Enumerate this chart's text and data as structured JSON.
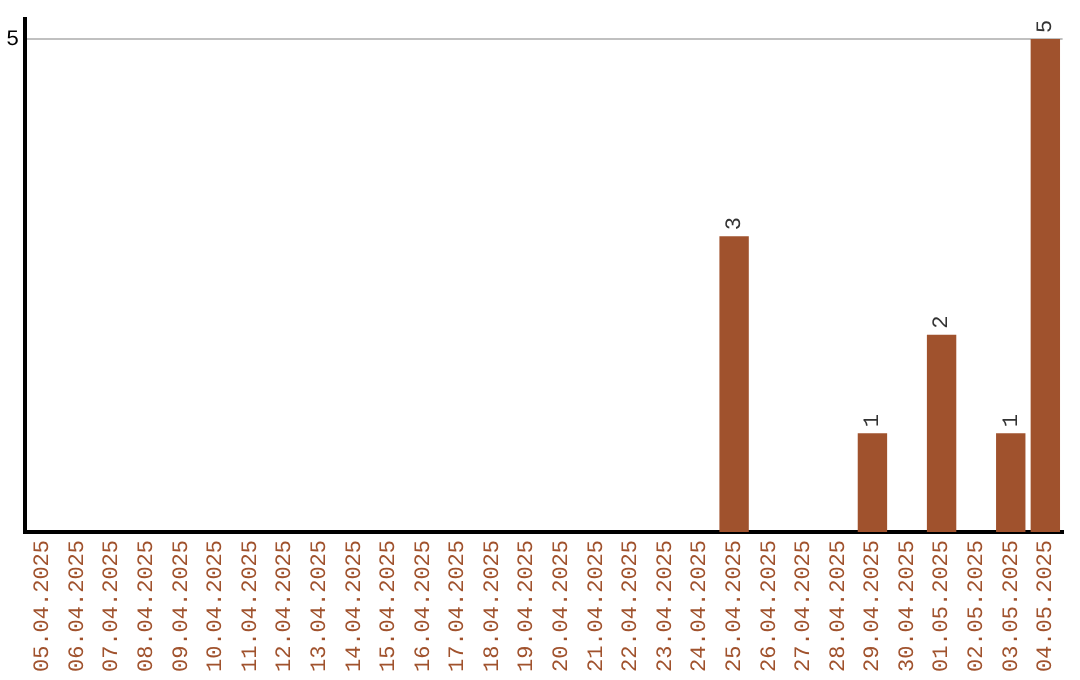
{
  "chart_data": {
    "type": "bar",
    "categories": [
      "05.04.2025",
      "06.04.2025",
      "07.04.2025",
      "08.04.2025",
      "09.04.2025",
      "10.04.2025",
      "11.04.2025",
      "12.04.2025",
      "13.04.2025",
      "14.04.2025",
      "15.04.2025",
      "16.04.2025",
      "17.04.2025",
      "18.04.2025",
      "19.04.2025",
      "20.04.2025",
      "21.04.2025",
      "22.04.2025",
      "23.04.2025",
      "24.04.2025",
      "25.04.2025",
      "26.04.2025",
      "27.04.2025",
      "28.04.2025",
      "29.04.2025",
      "30.04.2025",
      "01.05.2025",
      "02.05.2025",
      "03.05.2025",
      "04.05.2025"
    ],
    "values": [
      null,
      null,
      null,
      null,
      null,
      null,
      null,
      null,
      null,
      null,
      null,
      null,
      null,
      null,
      null,
      null,
      null,
      null,
      null,
      null,
      3,
      null,
      null,
      null,
      1,
      null,
      2,
      null,
      1,
      5
    ],
    "data_labels": true,
    "color": "#a0522d",
    "ylim": [
      0,
      5.2
    ],
    "yticks": [
      5
    ],
    "grid": "y",
    "legend": false
  }
}
